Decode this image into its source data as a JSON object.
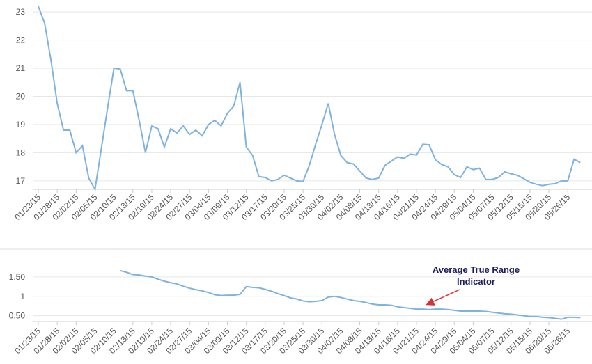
{
  "chart_data": [
    {
      "type": "line",
      "color": "#7fb3df",
      "grid": true,
      "categories": [
        "01/23/15",
        null,
        null,
        "01/28/15",
        null,
        null,
        "02/02/15",
        null,
        null,
        "02/05/15",
        null,
        null,
        "02/10/15",
        null,
        null,
        "02/13/15",
        null,
        null,
        "02/19/15",
        null,
        null,
        "02/24/15",
        null,
        null,
        "02/27/15",
        null,
        null,
        "03/04/15",
        null,
        null,
        "03/09/15",
        null,
        null,
        "03/12/15",
        null,
        null,
        "03/17/15",
        null,
        null,
        "03/20/15",
        null,
        null,
        "03/25/15",
        null,
        null,
        "03/30/15",
        null,
        null,
        "04/02/15",
        null,
        null,
        "04/08/15",
        null,
        null,
        "04/13/15",
        null,
        null,
        "04/16/15",
        null,
        null,
        "04/21/15",
        null,
        null,
        "04/24/15",
        null,
        null,
        "04/29/15",
        null,
        null,
        "05/04/15",
        null,
        null,
        "05/07/15",
        null,
        null,
        "05/12/15",
        null,
        null,
        "05/15/15",
        null,
        null,
        "05/20/15",
        null,
        null,
        "05/26/15",
        null,
        null
      ],
      "values": [
        23.2,
        22.6,
        21.3,
        19.75,
        18.8,
        18.8,
        18.0,
        18.25,
        17.1,
        16.7,
        18.15,
        19.6,
        21.0,
        20.97,
        20.2,
        20.2,
        19.15,
        18.0,
        18.95,
        18.85,
        18.2,
        18.85,
        18.7,
        18.95,
        18.65,
        18.8,
        18.6,
        19.0,
        19.15,
        18.95,
        19.4,
        19.65,
        20.5,
        18.2,
        17.9,
        17.15,
        17.12,
        17.0,
        17.05,
        17.2,
        17.1,
        17.0,
        16.98,
        17.55,
        18.3,
        19.0,
        19.75,
        18.65,
        17.9,
        17.65,
        17.6,
        17.35,
        17.1,
        17.05,
        17.1,
        17.55,
        17.7,
        17.85,
        17.8,
        17.95,
        17.92,
        18.3,
        18.28,
        17.75,
        17.58,
        17.5,
        17.22,
        17.12,
        17.5,
        17.4,
        17.45,
        17.05,
        17.05,
        17.12,
        17.32,
        17.25,
        17.2,
        17.08,
        16.95,
        16.88,
        16.83,
        16.88,
        16.9,
        17.0,
        17.0,
        17.77,
        17.65
      ],
      "ylim": [
        16.7,
        23.3
      ],
      "yticks": [
        17,
        18,
        19,
        20,
        21,
        22,
        23
      ]
    },
    {
      "type": "line",
      "color": "#7fb3df",
      "grid": true,
      "annotation": "Average True Range Indicator",
      "categories": [
        "01/23/15",
        null,
        null,
        "01/28/15",
        null,
        null,
        "02/02/15",
        null,
        null,
        "02/05/15",
        null,
        null,
        "02/10/15",
        null,
        null,
        "02/13/15",
        null,
        null,
        "02/19/15",
        null,
        null,
        "02/24/15",
        null,
        null,
        "02/27/15",
        null,
        null,
        "03/04/15",
        null,
        null,
        "03/09/15",
        null,
        null,
        "03/12/15",
        null,
        null,
        "03/17/15",
        null,
        null,
        "03/20/15",
        null,
        null,
        "03/25/15",
        null,
        null,
        "03/30/15",
        null,
        null,
        "04/02/15",
        null,
        null,
        "04/08/15",
        null,
        null,
        "04/13/15",
        null,
        null,
        "04/16/15",
        null,
        null,
        "04/21/15",
        null,
        null,
        "04/24/15",
        null,
        null,
        "04/29/15",
        null,
        null,
        "05/04/15",
        null,
        null,
        "05/07/15",
        null,
        null,
        "05/12/15",
        null,
        null,
        "05/15/15",
        null,
        null,
        "05/20/15",
        null,
        null,
        "05/26/15",
        null,
        null
      ],
      "values": [
        null,
        null,
        null,
        null,
        null,
        null,
        null,
        null,
        null,
        null,
        null,
        null,
        null,
        1.66,
        1.62,
        1.56,
        1.55,
        1.52,
        1.5,
        1.44,
        1.39,
        1.35,
        1.32,
        1.26,
        1.21,
        1.17,
        1.14,
        1.1,
        1.04,
        1.02,
        1.03,
        1.03,
        1.05,
        1.25,
        1.23,
        1.22,
        1.18,
        1.13,
        1.07,
        1.02,
        0.96,
        0.93,
        0.88,
        0.86,
        0.87,
        0.89,
        0.98,
        1.0,
        0.97,
        0.93,
        0.89,
        0.87,
        0.84,
        0.8,
        0.78,
        0.78,
        0.77,
        0.73,
        0.71,
        0.69,
        0.67,
        0.67,
        0.66,
        0.67,
        0.67,
        0.66,
        0.64,
        0.62,
        0.62,
        0.62,
        0.62,
        0.61,
        0.59,
        0.57,
        0.55,
        0.54,
        0.52,
        0.5,
        0.48,
        0.48,
        0.46,
        0.45,
        0.43,
        0.41,
        0.46,
        0.46,
        0.45
      ],
      "ylim": [
        0.35,
        2.0
      ],
      "yticks": [
        {
          "value": 0.5,
          "label": "0.50"
        },
        1,
        {
          "value": 1.5,
          "label": "1.50"
        }
      ]
    }
  ]
}
